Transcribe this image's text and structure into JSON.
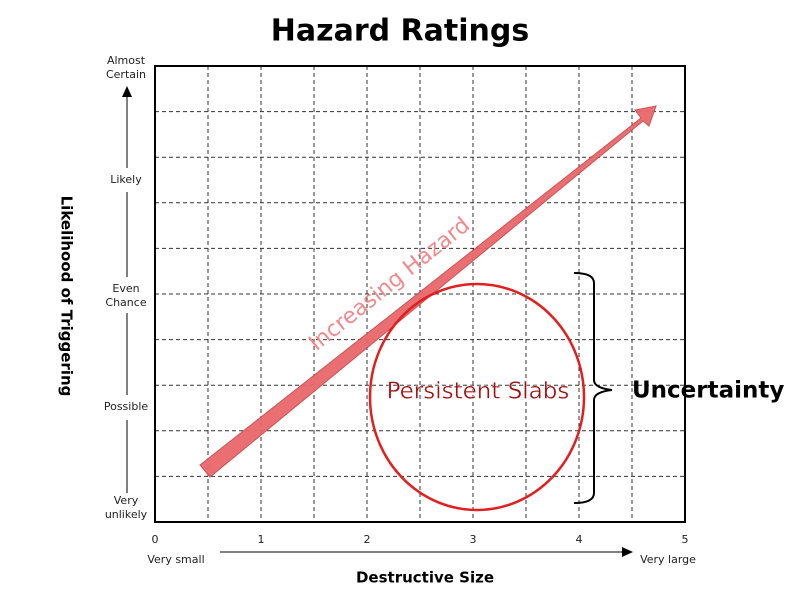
{
  "title": "Hazard Ratings",
  "x_axis": {
    "label": "Destructive Size",
    "ticks": [
      0,
      1,
      2,
      3,
      4,
      5
    ],
    "low": "Very small",
    "high": "Very large"
  },
  "y_axis": {
    "label": "Likelihood of Triggering",
    "levels": [
      [
        "Very",
        "unlikely"
      ],
      [
        "Possible"
      ],
      [
        "Even",
        "Chance"
      ],
      [
        "Likely"
      ],
      [
        "Almost",
        "Certain"
      ]
    ]
  },
  "arrow_label": "Increasing Hazard",
  "region_label": "Persistent Slabs",
  "brace_label": "Uncertainty"
}
